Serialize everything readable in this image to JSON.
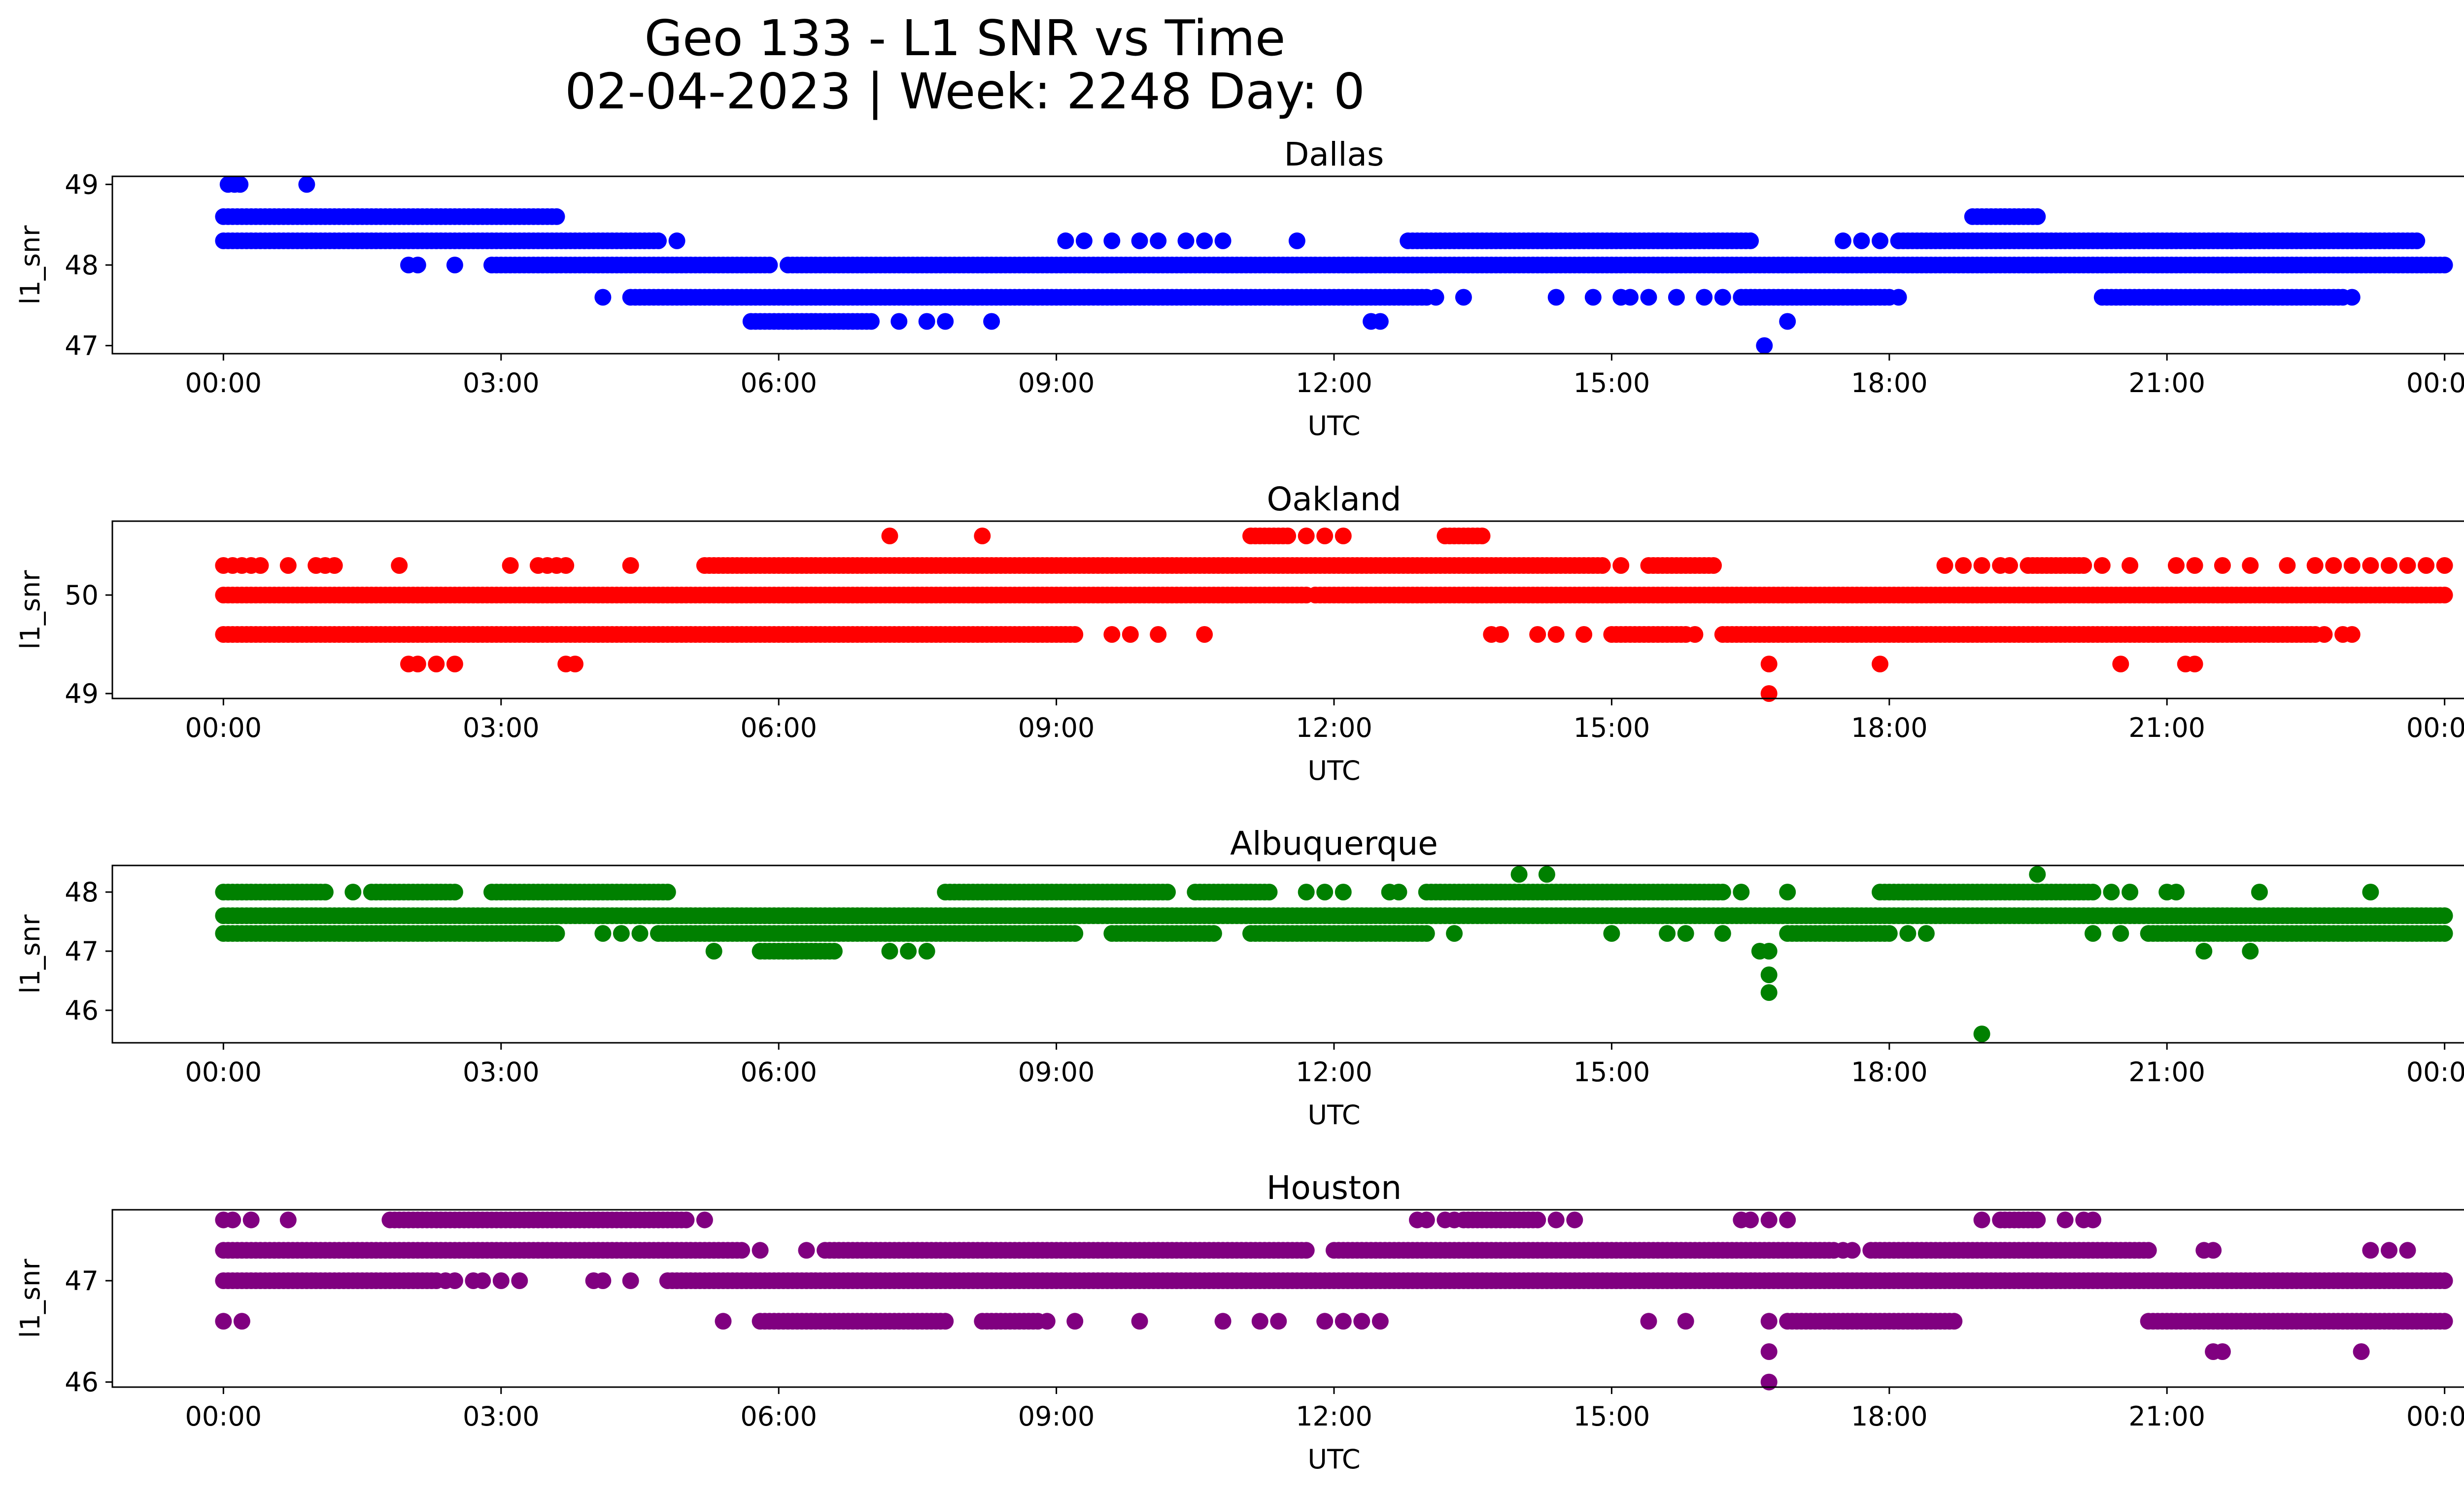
{
  "figure": {
    "title_line1": "Geo 133 - L1 SNR vs Time",
    "title_line2": "02-04-2023 | Week: 2248 Day: 0"
  },
  "chart_data": [
    {
      "type": "scatter",
      "title": "Dallas",
      "xlabel": "UTC",
      "ylabel": "l1_snr",
      "color": "#0000ff",
      "xticks": [
        "00:00",
        "03:00",
        "06:00",
        "09:00",
        "12:00",
        "15:00",
        "18:00",
        "21:00",
        "00:00"
      ],
      "xlim_hours": [
        -1.2,
        25.2
      ],
      "yticks": [
        47,
        48,
        49
      ],
      "ylim": [
        46.9,
        49.1
      ],
      "series": [
        {
          "y": 48.3,
          "segments": [
            [
              0.0,
              4.7
            ],
            [
              12.8,
              16.5
            ],
            [
              18.1,
              23.7
            ]
          ],
          "points": [
            9.1,
            9.3,
            9.6,
            9.9,
            10.1,
            10.4,
            10.6,
            10.8,
            11.6,
            4.9,
            17.5,
            17.7,
            17.9,
            21.3,
            21.7,
            21.9
          ]
        },
        {
          "y": 48.6,
          "segments": [
            [
              0.0,
              3.6
            ],
            [
              18.9,
              19.6
            ]
          ],
          "points": []
        },
        {
          "y": 48.0,
          "segments": [
            [
              2.9,
              5.9
            ],
            [
              6.1,
              24.0
            ]
          ],
          "points": [
            2.0,
            2.1,
            2.5
          ]
        },
        {
          "y": 47.6,
          "segments": [
            [
              4.4,
              13.0
            ],
            [
              16.4,
              18.0
            ],
            [
              20.3,
              22.9
            ]
          ],
          "points": [
            4.1,
            13.1,
            13.4,
            14.4,
            14.8,
            15.1,
            15.2,
            15.4,
            15.7,
            16.0,
            16.2,
            18.1,
            23.0
          ]
        },
        {
          "y": 47.3,
          "segments": [
            [
              5.7,
              7.0
            ]
          ],
          "points": [
            7.3,
            7.6,
            7.8,
            8.3,
            12.4,
            12.5,
            16.9
          ]
        },
        {
          "y": 49.0,
          "segments": [],
          "points": [
            0.05,
            0.12,
            0.18,
            0.9
          ]
        },
        {
          "y": 47.0,
          "segments": [],
          "points": [
            16.65
          ]
        }
      ]
    },
    {
      "type": "scatter",
      "title": "Oakland",
      "xlabel": "UTC",
      "ylabel": "l1_snr",
      "color": "#ff0000",
      "xticks": [
        "00:00",
        "03:00",
        "06:00",
        "09:00",
        "12:00",
        "15:00",
        "18:00",
        "21:00",
        "00:00"
      ],
      "xlim_hours": [
        -1.2,
        25.2
      ],
      "yticks": [
        49,
        50
      ],
      "ylim": [
        48.95,
        50.75
      ],
      "series": [
        {
          "y": 50.0,
          "segments": [
            [
              0.0,
              11.7
            ],
            [
              11.8,
              24.0
            ]
          ],
          "points": []
        },
        {
          "y": 50.3,
          "segments": [
            [
              5.2,
              14.9
            ],
            [
              15.4,
              16.1
            ],
            [
              19.5,
              20.1
            ]
          ],
          "points": [
            0.0,
            0.1,
            0.2,
            0.3,
            0.4,
            0.7,
            1.0,
            1.1,
            1.2,
            1.9,
            3.1,
            3.4,
            3.5,
            3.6,
            3.7,
            4.4,
            15.1,
            18.6,
            18.8,
            19.0,
            19.2,
            19.3,
            20.3,
            20.6,
            21.1,
            21.3,
            21.6,
            21.9,
            22.3,
            22.6,
            22.8,
            23.0,
            23.2,
            23.4,
            23.6,
            23.8,
            24.0
          ]
        },
        {
          "y": 49.6,
          "segments": [
            [
              0.0,
              9.2
            ],
            [
              15.0,
              15.8
            ],
            [
              16.2,
              22.6
            ]
          ],
          "points": [
            9.6,
            9.8,
            10.1,
            10.6,
            13.7,
            13.8,
            14.2,
            14.4,
            14.7,
            15.9,
            22.7,
            22.9,
            23.0
          ]
        },
        {
          "y": 50.6,
          "segments": [
            [
              11.1,
              11.5
            ],
            [
              13.2,
              13.6
            ]
          ],
          "points": [
            7.2,
            8.2,
            11.7,
            11.9,
            12.1
          ]
        },
        {
          "y": 49.3,
          "segments": [],
          "points": [
            2.0,
            2.1,
            2.3,
            2.5,
            3.7,
            3.8,
            16.7,
            17.9,
            20.5,
            21.2,
            21.3
          ]
        },
        {
          "y": 49.0,
          "segments": [],
          "points": [
            16.7
          ]
        }
      ]
    },
    {
      "type": "scatter",
      "title": "Albuquerque",
      "xlabel": "UTC",
      "ylabel": "l1_snr",
      "color": "#008000",
      "xticks": [
        "00:00",
        "03:00",
        "06:00",
        "09:00",
        "12:00",
        "15:00",
        "18:00",
        "21:00",
        "00:00"
      ],
      "xlim_hours": [
        -1.2,
        25.2
      ],
      "yticks": [
        46,
        47,
        48
      ],
      "ylim": [
        45.45,
        48.45
      ],
      "series": [
        {
          "y": 47.6,
          "segments": [
            [
              0.0,
              24.0
            ]
          ],
          "points": []
        },
        {
          "y": 47.3,
          "segments": [
            [
              0.0,
              3.6
            ],
            [
              4.7,
              9.2
            ],
            [
              9.6,
              10.7
            ],
            [
              11.1,
              13.0
            ],
            [
              16.9,
              18.0
            ],
            [
              20.8,
              24.0
            ]
          ],
          "points": [
            4.1,
            4.3,
            4.5,
            13.3,
            15.0,
            15.6,
            15.8,
            16.2,
            18.2,
            18.4,
            20.2,
            20.5
          ]
        },
        {
          "y": 48.0,
          "segments": [
            [
              0.0,
              1.1
            ],
            [
              1.6,
              2.5
            ],
            [
              2.9,
              4.8
            ],
            [
              7.8,
              10.2
            ],
            [
              10.5,
              11.3
            ],
            [
              13.0,
              16.2
            ],
            [
              17.9,
              20.2
            ]
          ],
          "points": [
            1.4,
            11.7,
            11.9,
            12.1,
            12.6,
            12.7,
            16.4,
            16.9,
            20.4,
            20.6,
            21.0,
            21.1,
            22.0,
            23.2
          ]
        },
        {
          "y": 47.0,
          "segments": [
            [
              5.8,
              6.6
            ]
          ],
          "points": [
            5.3,
            7.2,
            7.4,
            7.6,
            16.6,
            16.7,
            21.4,
            21.9
          ]
        },
        {
          "y": 48.3,
          "segments": [],
          "points": [
            14.0,
            14.3,
            19.6
          ]
        },
        {
          "y": 46.6,
          "segments": [],
          "points": [
            16.7
          ]
        },
        {
          "y": 46.3,
          "segments": [],
          "points": [
            16.7
          ]
        },
        {
          "y": 45.6,
          "segments": [],
          "points": [
            19.0
          ]
        }
      ]
    },
    {
      "type": "scatter",
      "title": "Houston",
      "xlabel": "UTC",
      "ylabel": "l1_snr",
      "color": "#800080",
      "xticks": [
        "00:00",
        "03:00",
        "06:00",
        "09:00",
        "12:00",
        "15:00",
        "18:00",
        "21:00",
        "00:00"
      ],
      "xlim_hours": [
        -1.2,
        25.2
      ],
      "yticks": [
        46,
        47
      ],
      "ylim": [
        45.95,
        47.7
      ],
      "series": [
        {
          "y": 47.0,
          "segments": [
            [
              0.0,
              2.3
            ],
            [
              4.8,
              24.0
            ]
          ],
          "points": [
            2.4,
            2.5,
            2.7,
            2.8,
            3.0,
            3.2,
            4.0,
            4.1,
            4.4
          ]
        },
        {
          "y": 47.3,
          "segments": [
            [
              0.0,
              5.6
            ],
            [
              6.5,
              11.7
            ],
            [
              12.0,
              17.4
            ],
            [
              17.8,
              20.8
            ]
          ],
          "points": [
            5.8,
            6.3,
            17.5,
            17.6,
            21.4,
            21.5,
            23.2,
            23.4,
            23.6
          ]
        },
        {
          "y": 47.6,
          "segments": [
            [
              1.8,
              5.0
            ],
            [
              13.4,
              14.2
            ],
            [
              19.2,
              19.6
            ]
          ],
          "points": [
            0.0,
            0.1,
            0.3,
            0.7,
            5.2,
            12.9,
            13.0,
            13.2,
            13.3,
            14.4,
            14.6,
            16.4,
            16.5,
            16.7,
            16.9,
            19.0,
            19.9,
            20.1,
            20.2
          ]
        },
        {
          "y": 46.6,
          "segments": [
            [
              5.8,
              7.8
            ],
            [
              8.2,
              8.8
            ],
            [
              16.9,
              18.7
            ],
            [
              20.8,
              24.0
            ]
          ],
          "points": [
            0.0,
            0.2,
            5.4,
            8.9,
            9.2,
            9.9,
            10.8,
            11.2,
            11.4,
            11.9,
            12.1,
            12.3,
            12.5,
            15.4,
            15.8,
            16.7
          ]
        },
        {
          "y": 46.3,
          "segments": [],
          "points": [
            16.7,
            21.5,
            21.6,
            23.1
          ]
        },
        {
          "y": 46.0,
          "segments": [],
          "points": [
            16.7
          ]
        }
      ]
    }
  ]
}
